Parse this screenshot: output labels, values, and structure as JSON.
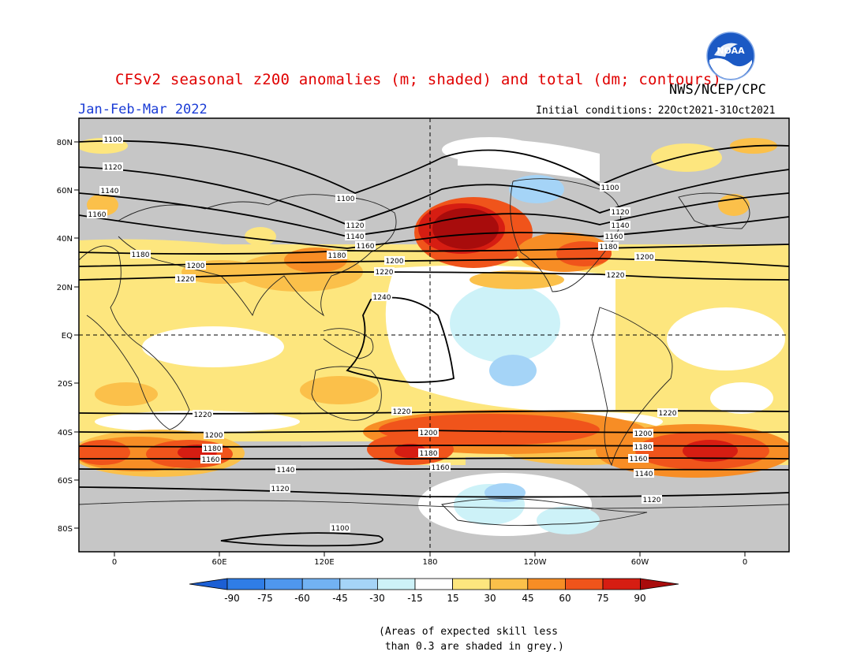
{
  "title": "CFSv2 seasonal z200 anomalies (m; shaded) and total (dm; contours)",
  "agency": "NWS/NCEP/CPC",
  "logo_text": "NOAA",
  "period": "Jan-Feb-Mar 2022",
  "initial_conditions": {
    "label": "Initial conditions:",
    "value": "22Oct2021-31Oct2021"
  },
  "lat_labels": [
    "80N",
    "60N",
    "40N",
    "20N",
    "EQ",
    "20S",
    "40S",
    "60S",
    "80S"
  ],
  "lon_labels": [
    "0",
    "60E",
    "120E",
    "180",
    "120W",
    "60W",
    "0"
  ],
  "colorbar": {
    "ticks": [
      "-90",
      "-75",
      "-60",
      "-45",
      "-30",
      "-15",
      "15",
      "30",
      "45",
      "60",
      "75",
      "90"
    ],
    "colors": [
      "#1c5fd4",
      "#2f7de6",
      "#4f97ee",
      "#72b2f3",
      "#a5d4f7",
      "#cdf2f8",
      "#ffffff",
      "#fde67e",
      "#fbc04a",
      "#f78d25",
      "#f0541b",
      "#d61d12",
      "#a80c0c"
    ]
  },
  "note": "(Areas of expected skill less\n than 0.3 are shaded in grey.)",
  "contour_labels": [
    "1100",
    "1120",
    "1140",
    "1160",
    "1180",
    "1200",
    "1220",
    "1240"
  ]
}
